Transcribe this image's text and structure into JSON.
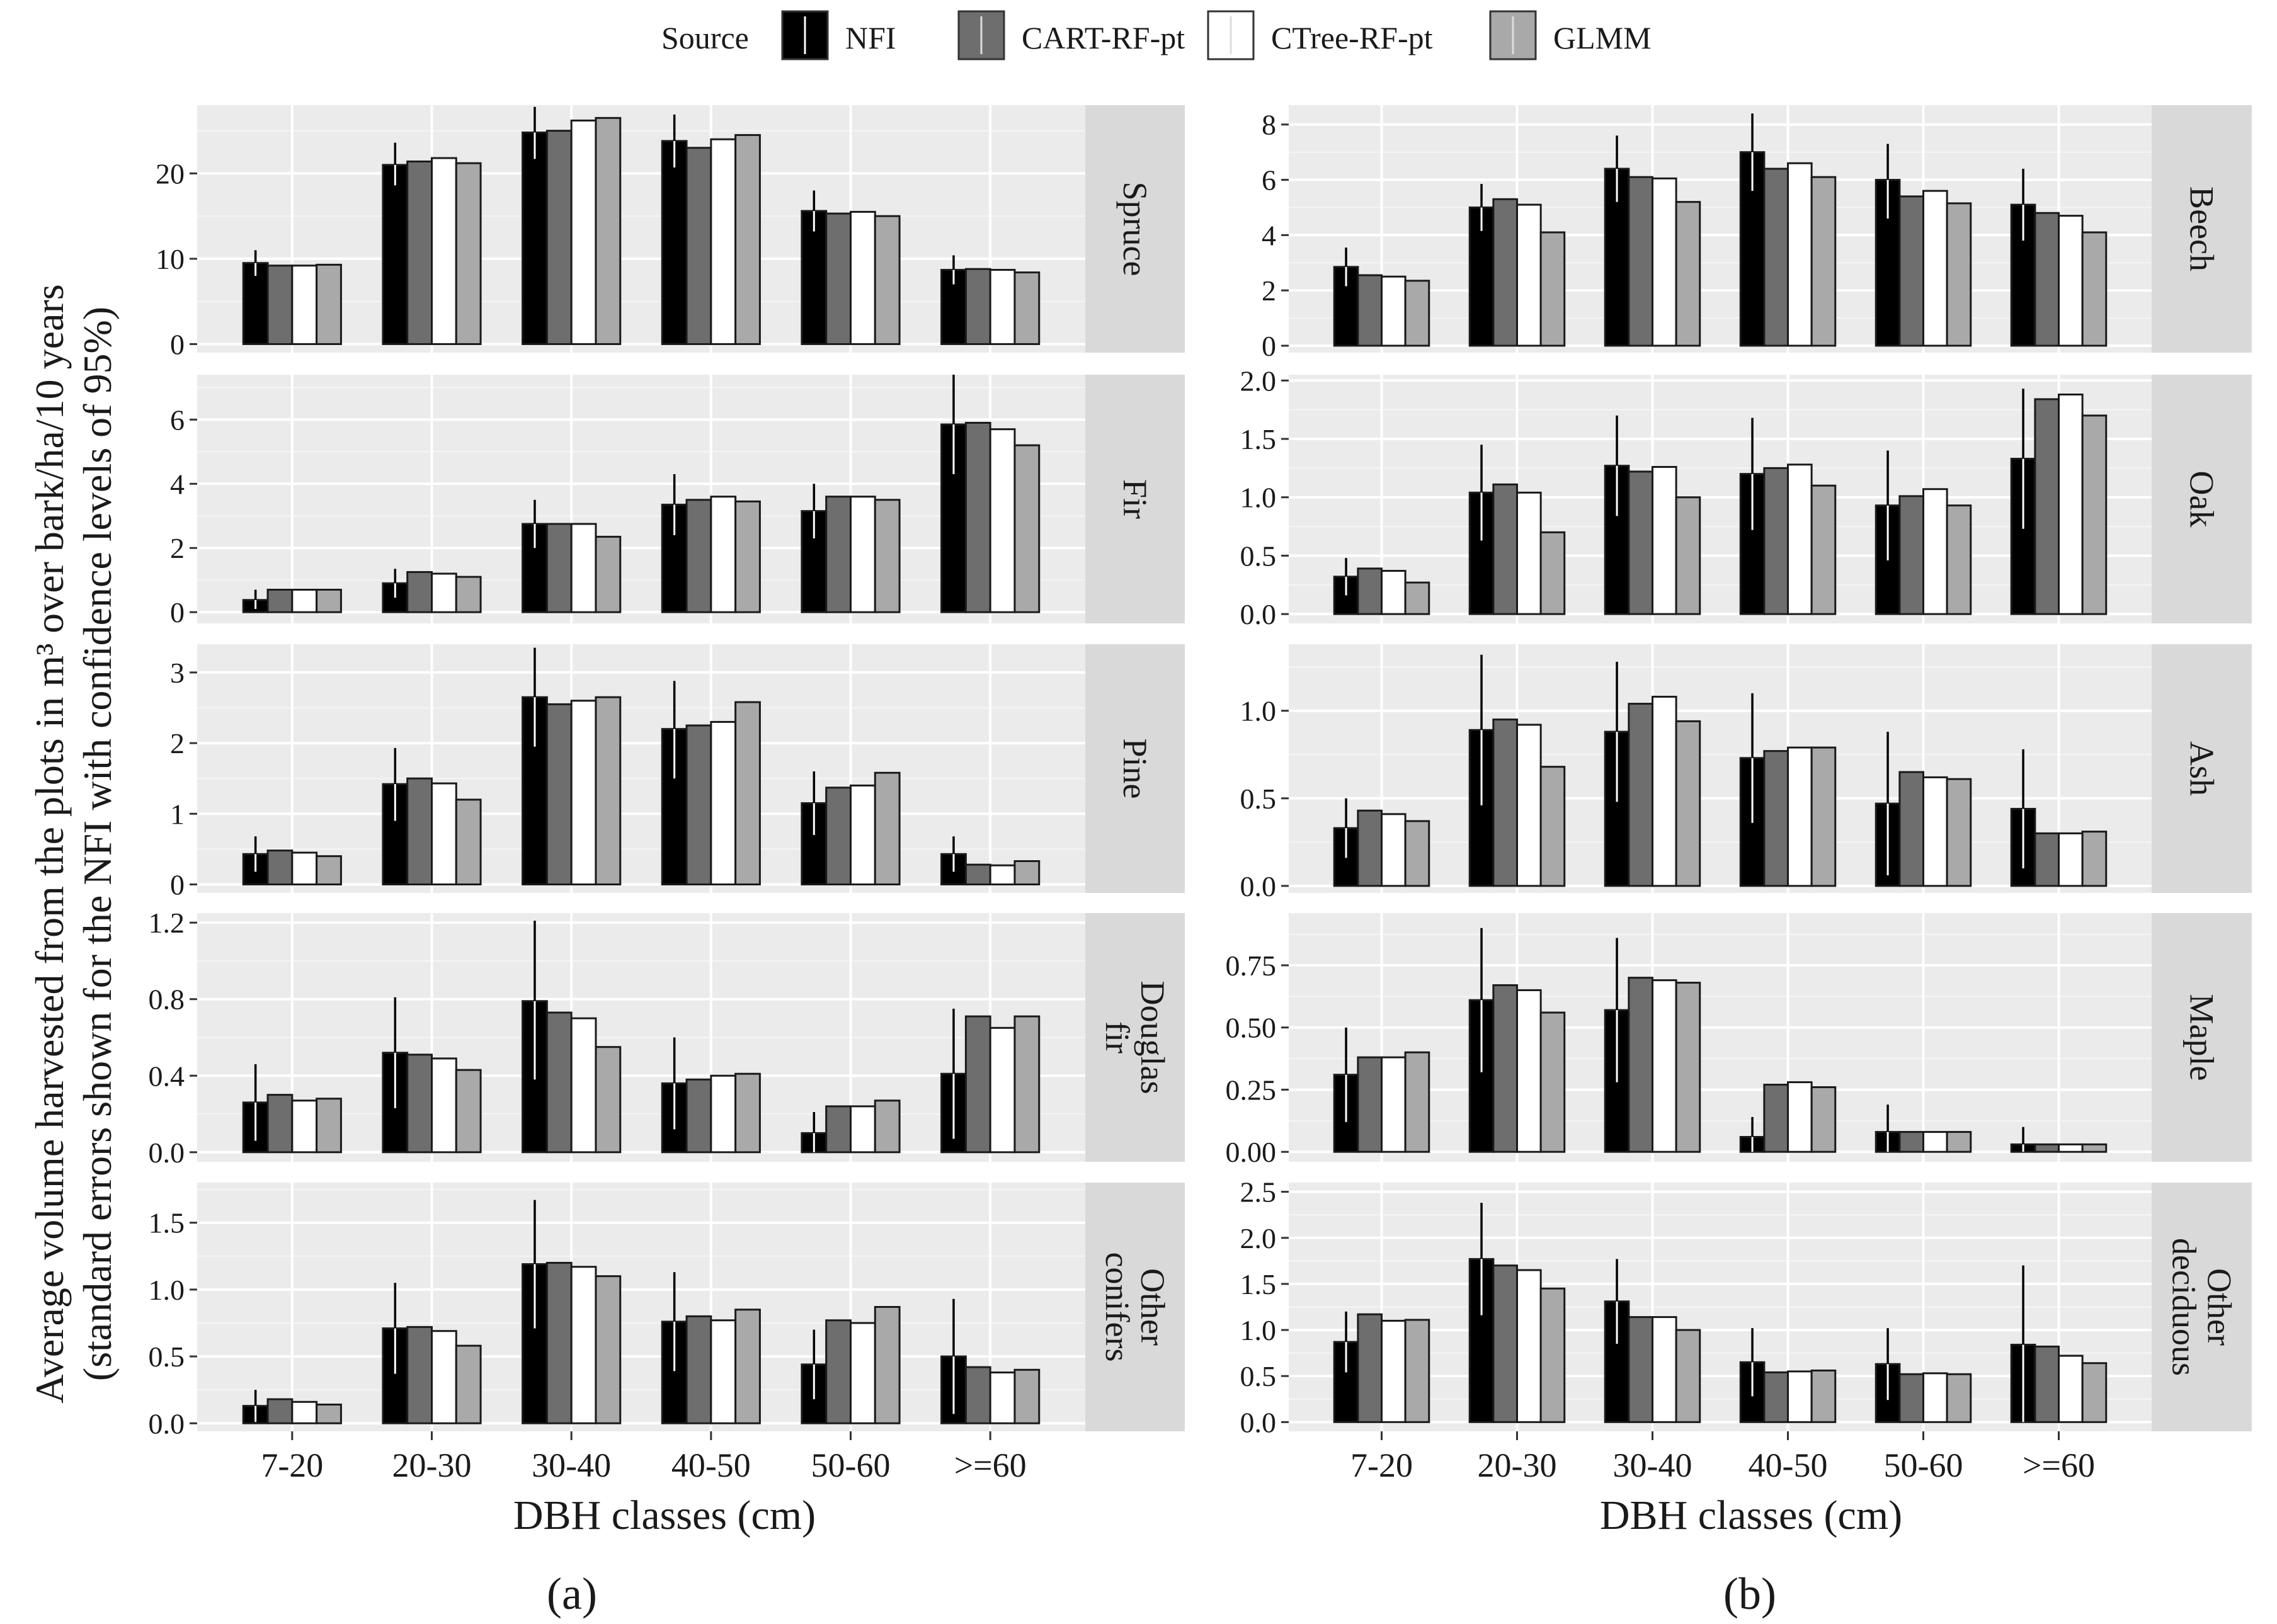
{
  "chart_data": {
    "type": "bar",
    "legend": {
      "title": "Source",
      "entries": [
        {
          "name": "NFI",
          "color": "#000000"
        },
        {
          "name": "CART-RF-pt",
          "color": "#6e6e6e"
        },
        {
          "name": "CTree-RF-pt",
          "color": "#ffffff"
        },
        {
          "name": "GLMM",
          "color": "#a9a9a9"
        }
      ],
      "position": "top"
    },
    "ylabel_lines": [
      "Average volume harvested from the plots in m³ over bark/ha/10 years",
      "(standard errors shown for the NFI with confidence levels of 95%)"
    ],
    "categories": [
      "7-20",
      "20-30",
      "30-40",
      "40-50",
      "50-60",
      ">=60"
    ],
    "columns": [
      {
        "label": "(a)",
        "xlabel": "DBH classes (cm)",
        "panels": [
          {
            "strip": [
              "Spruce"
            ],
            "ylim": [
              -1,
              28
            ],
            "yticks": [
              0,
              10,
              20
            ],
            "ytick_labels": [
              "0",
              "10",
              "20"
            ],
            "series": [
              {
                "name": "NFI",
                "values": [
                  9.5,
                  21.0,
                  24.8,
                  23.8,
                  15.6,
                  8.7
                ]
              },
              {
                "name": "CART-RF-pt",
                "values": [
                  9.2,
                  21.4,
                  25.0,
                  23.0,
                  15.3,
                  8.8
                ]
              },
              {
                "name": "CTree-RF-pt",
                "values": [
                  9.2,
                  21.8,
                  26.2,
                  24.0,
                  15.5,
                  8.7
                ]
              },
              {
                "name": "GLMM",
                "values": [
                  9.3,
                  21.2,
                  26.5,
                  24.5,
                  15.0,
                  8.4
                ]
              }
            ],
            "nfi_upper": [
              11.0,
              23.6,
              27.8,
              26.9,
              18.0,
              10.4
            ],
            "nfi_lower": [
              8.0,
              18.6,
              21.7,
              20.7,
              13.2,
              7.0
            ]
          },
          {
            "strip": [
              "Fir"
            ],
            "ylim": [
              -0.35,
              7.4
            ],
            "yticks": [
              0,
              2,
              4,
              6
            ],
            "ytick_labels": [
              "0",
              "2",
              "4",
              "6"
            ],
            "series": [
              {
                "name": "NFI",
                "values": [
                  0.38,
                  0.9,
                  2.75,
                  3.35,
                  3.15,
                  5.85
                ]
              },
              {
                "name": "CART-RF-pt",
                "values": [
                  0.7,
                  1.25,
                  2.75,
                  3.5,
                  3.6,
                  5.9
                ]
              },
              {
                "name": "CTree-RF-pt",
                "values": [
                  0.7,
                  1.2,
                  2.75,
                  3.6,
                  3.6,
                  5.7
                ]
              },
              {
                "name": "GLMM",
                "values": [
                  0.7,
                  1.1,
                  2.35,
                  3.45,
                  3.5,
                  5.2
                ]
              }
            ],
            "nfi_upper": [
              0.7,
              1.35,
              3.5,
              4.3,
              4.0,
              7.4
            ],
            "nfi_lower": [
              0.1,
              0.45,
              2.0,
              2.4,
              2.3,
              4.3
            ]
          },
          {
            "strip": [
              "Pine"
            ],
            "ylim": [
              -0.12,
              3.4
            ],
            "yticks": [
              0,
              1,
              2,
              3
            ],
            "ytick_labels": [
              "0",
              "1",
              "2",
              "3"
            ],
            "series": [
              {
                "name": "NFI",
                "values": [
                  0.43,
                  1.42,
                  2.65,
                  2.2,
                  1.15,
                  0.43
                ]
              },
              {
                "name": "CART-RF-pt",
                "values": [
                  0.48,
                  1.5,
                  2.55,
                  2.25,
                  1.37,
                  0.28
                ]
              },
              {
                "name": "CTree-RF-pt",
                "values": [
                  0.45,
                  1.43,
                  2.6,
                  2.3,
                  1.4,
                  0.27
                ]
              },
              {
                "name": "GLMM",
                "values": [
                  0.4,
                  1.2,
                  2.65,
                  2.58,
                  1.58,
                  0.33
                ]
              }
            ],
            "nfi_upper": [
              0.68,
              1.93,
              3.35,
              2.88,
              1.6,
              0.68
            ],
            "nfi_lower": [
              0.18,
              0.9,
              1.95,
              1.5,
              0.7,
              0.18
            ]
          },
          {
            "strip": [
              "Douglas",
              "fir"
            ],
            "ylim": [
              -0.05,
              1.25
            ],
            "yticks": [
              0.0,
              0.4,
              0.8,
              1.2
            ],
            "ytick_labels": [
              "0.0",
              "0.4",
              "0.8",
              "1.2"
            ],
            "series": [
              {
                "name": "NFI",
                "values": [
                  0.26,
                  0.52,
                  0.79,
                  0.36,
                  0.1,
                  0.41
                ]
              },
              {
                "name": "CART-RF-pt",
                "values": [
                  0.3,
                  0.51,
                  0.73,
                  0.38,
                  0.24,
                  0.71
                ]
              },
              {
                "name": "CTree-RF-pt",
                "values": [
                  0.27,
                  0.49,
                  0.7,
                  0.4,
                  0.24,
                  0.65
                ]
              },
              {
                "name": "GLMM",
                "values": [
                  0.28,
                  0.43,
                  0.55,
                  0.41,
                  0.27,
                  0.71
                ]
              }
            ],
            "nfi_upper": [
              0.46,
              0.81,
              1.21,
              0.6,
              0.21,
              0.75
            ],
            "nfi_lower": [
              0.06,
              0.23,
              0.38,
              0.12,
              0.0,
              0.07
            ]
          },
          {
            "strip": [
              "Other",
              "conifers"
            ],
            "ylim": [
              -0.06,
              1.8
            ],
            "yticks": [
              0.0,
              0.5,
              1.0,
              1.5
            ],
            "ytick_labels": [
              "0.0",
              "0.5",
              "1.0",
              "1.5"
            ],
            "series": [
              {
                "name": "NFI",
                "values": [
                  0.13,
                  0.71,
                  1.19,
                  0.76,
                  0.44,
                  0.5
                ]
              },
              {
                "name": "CART-RF-pt",
                "values": [
                  0.18,
                  0.72,
                  1.2,
                  0.8,
                  0.77,
                  0.42
                ]
              },
              {
                "name": "CTree-RF-pt",
                "values": [
                  0.16,
                  0.69,
                  1.17,
                  0.77,
                  0.75,
                  0.38
                ]
              },
              {
                "name": "GLMM",
                "values": [
                  0.14,
                  0.58,
                  1.1,
                  0.85,
                  0.87,
                  0.4
                ]
              }
            ],
            "nfi_upper": [
              0.25,
              1.05,
              1.67,
              1.13,
              0.7,
              0.93
            ],
            "nfi_lower": [
              0.01,
              0.37,
              0.71,
              0.39,
              0.18,
              0.07
            ]
          }
        ]
      },
      {
        "label": "(b)",
        "xlabel": "DBH classes (cm)",
        "panels": [
          {
            "strip": [
              "Beech"
            ],
            "ylim": [
              -0.25,
              8.7
            ],
            "yticks": [
              0,
              2,
              4,
              6,
              8
            ],
            "ytick_labels": [
              "0",
              "2",
              "4",
              "6",
              "8"
            ],
            "series": [
              {
                "name": "NFI",
                "values": [
                  2.85,
                  5.0,
                  6.4,
                  7.0,
                  6.0,
                  5.1
                ]
              },
              {
                "name": "CART-RF-pt",
                "values": [
                  2.55,
                  5.3,
                  6.1,
                  6.4,
                  5.4,
                  4.8
                ]
              },
              {
                "name": "CTree-RF-pt",
                "values": [
                  2.5,
                  5.1,
                  6.05,
                  6.6,
                  5.6,
                  4.7
                ]
              },
              {
                "name": "GLMM",
                "values": [
                  2.35,
                  4.1,
                  5.2,
                  6.1,
                  5.15,
                  4.1
                ]
              }
            ],
            "nfi_upper": [
              3.55,
              5.85,
              7.6,
              8.4,
              7.3,
              6.4
            ],
            "nfi_lower": [
              2.15,
              4.15,
              5.2,
              5.6,
              4.6,
              3.8
            ]
          },
          {
            "strip": [
              "Oak"
            ],
            "ylim": [
              -0.08,
              2.05
            ],
            "yticks": [
              0.0,
              0.5,
              1.0,
              1.5,
              2.0
            ],
            "ytick_labels": [
              "0.0",
              "0.5",
              "1.0",
              "1.5",
              "2.0"
            ],
            "series": [
              {
                "name": "NFI",
                "values": [
                  0.32,
                  1.04,
                  1.27,
                  1.2,
                  0.93,
                  1.33
                ]
              },
              {
                "name": "CART-RF-pt",
                "values": [
                  0.39,
                  1.11,
                  1.22,
                  1.25,
                  1.01,
                  1.84
                ]
              },
              {
                "name": "CTree-RF-pt",
                "values": [
                  0.37,
                  1.04,
                  1.26,
                  1.28,
                  1.07,
                  1.88
                ]
              },
              {
                "name": "GLMM",
                "values": [
                  0.27,
                  0.7,
                  1.0,
                  1.1,
                  0.93,
                  1.7
                ]
              }
            ],
            "nfi_upper": [
              0.48,
              1.45,
              1.7,
              1.68,
              1.4,
              1.93
            ],
            "nfi_lower": [
              0.16,
              0.63,
              0.84,
              0.72,
              0.46,
              0.73
            ]
          },
          {
            "strip": [
              "Ash"
            ],
            "ylim": [
              -0.04,
              1.38
            ],
            "yticks": [
              0.0,
              0.5,
              1.0
            ],
            "ytick_labels": [
              "0.0",
              "0.5",
              "1.0"
            ],
            "series": [
              {
                "name": "NFI",
                "values": [
                  0.33,
                  0.89,
                  0.88,
                  0.73,
                  0.47,
                  0.44
                ]
              },
              {
                "name": "CART-RF-pt",
                "values": [
                  0.43,
                  0.95,
                  1.04,
                  0.77,
                  0.65,
                  0.3
                ]
              },
              {
                "name": "CTree-RF-pt",
                "values": [
                  0.41,
                  0.92,
                  1.08,
                  0.79,
                  0.62,
                  0.3
                ]
              },
              {
                "name": "GLMM",
                "values": [
                  0.37,
                  0.68,
                  0.94,
                  0.79,
                  0.61,
                  0.31
                ]
              }
            ],
            "nfi_upper": [
              0.5,
              1.32,
              1.28,
              1.1,
              0.88,
              0.78
            ],
            "nfi_lower": [
              0.16,
              0.46,
              0.48,
              0.36,
              0.06,
              0.1
            ]
          },
          {
            "strip": [
              "Maple"
            ],
            "ylim": [
              -0.04,
              0.96
            ],
            "yticks": [
              0.0,
              0.25,
              0.5,
              0.75
            ],
            "ytick_labels": [
              "0.00",
              "0.25",
              "0.50",
              "0.75"
            ],
            "series": [
              {
                "name": "NFI",
                "values": [
                  0.31,
                  0.61,
                  0.57,
                  0.06,
                  0.08,
                  0.03
                ]
              },
              {
                "name": "CART-RF-pt",
                "values": [
                  0.38,
                  0.67,
                  0.7,
                  0.27,
                  0.08,
                  0.03
                ]
              },
              {
                "name": "CTree-RF-pt",
                "values": [
                  0.38,
                  0.65,
                  0.69,
                  0.28,
                  0.08,
                  0.03
                ]
              },
              {
                "name": "GLMM",
                "values": [
                  0.4,
                  0.56,
                  0.68,
                  0.26,
                  0.08,
                  0.03
                ]
              }
            ],
            "nfi_upper": [
              0.5,
              0.9,
              0.86,
              0.14,
              0.19,
              0.1
            ],
            "nfi_lower": [
              0.12,
              0.32,
              0.28,
              0.0,
              0.0,
              0.0
            ]
          },
          {
            "strip": [
              "Other",
              "deciduous"
            ],
            "ylim": [
              -0.1,
              2.6
            ],
            "yticks": [
              0.0,
              0.5,
              1.0,
              1.5,
              2.0,
              2.5
            ],
            "ytick_labels": [
              "0.0",
              "0.5",
              "1.0",
              "1.5",
              "2.0",
              "2.5"
            ],
            "series": [
              {
                "name": "NFI",
                "values": [
                  0.87,
                  1.77,
                  1.31,
                  0.65,
                  0.63,
                  0.84
                ]
              },
              {
                "name": "CART-RF-pt",
                "values": [
                  1.17,
                  1.7,
                  1.14,
                  0.54,
                  0.52,
                  0.82
                ]
              },
              {
                "name": "CTree-RF-pt",
                "values": [
                  1.1,
                  1.65,
                  1.14,
                  0.55,
                  0.53,
                  0.72
                ]
              },
              {
                "name": "GLMM",
                "values": [
                  1.11,
                  1.45,
                  1.0,
                  0.56,
                  0.52,
                  0.64
                ]
              }
            ],
            "nfi_upper": [
              1.2,
              2.38,
              1.77,
              1.02,
              1.02,
              1.7
            ],
            "nfi_lower": [
              0.54,
              1.16,
              0.85,
              0.28,
              0.24,
              0.0
            ]
          }
        ]
      }
    ]
  }
}
